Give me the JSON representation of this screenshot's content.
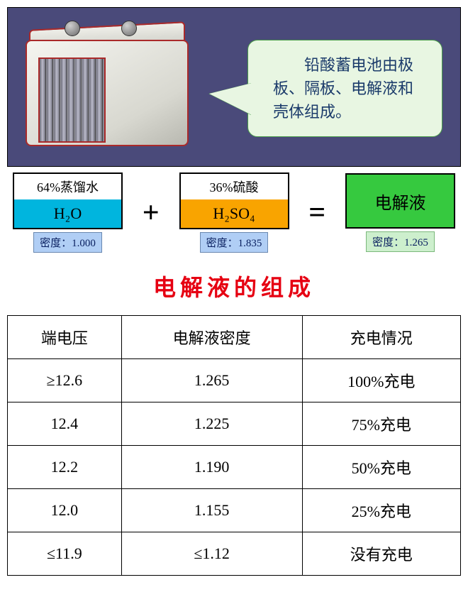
{
  "panel": {
    "bg_color": "#4a4a7a",
    "callout_text": "　　铅酸蓄电池由极板、隔板、电解液和壳体组成。",
    "callout_bg": "#e8f6e2",
    "callout_border": "#4a9c4a",
    "callout_text_color": "#1a3a6a"
  },
  "equation": {
    "plus": "+",
    "equals": "=",
    "water": {
      "top": "64%蒸馏水",
      "formula": "H₂O",
      "density_label": "密度：1.000",
      "bot_color": "#00b5de"
    },
    "acid": {
      "top": "36%硫酸",
      "formula": "H₂SO₄",
      "density_label": "密度：1.835",
      "bot_color": "#f9a400"
    },
    "result": {
      "label": "电解液",
      "density_label": "密度：1.265",
      "box_color": "#36c93f"
    }
  },
  "title": "电解液的组成",
  "table": {
    "columns": [
      "端电压",
      "电解液密度",
      "充电情况"
    ],
    "rows": [
      [
        "≥12.6",
        "1.265",
        "100%充电"
      ],
      [
        "12.4",
        "1.225",
        "75%充电"
      ],
      [
        "12.2",
        "1.190",
        "50%充电"
      ],
      [
        "12.0",
        "1.155",
        "25%充电"
      ],
      [
        "≤11.9",
        "≤1.12",
        "没有充电"
      ]
    ],
    "border_color": "#000000",
    "cell_fontsize": 22
  },
  "colors": {
    "title": "#e60012",
    "page_bg": "#ffffff"
  }
}
